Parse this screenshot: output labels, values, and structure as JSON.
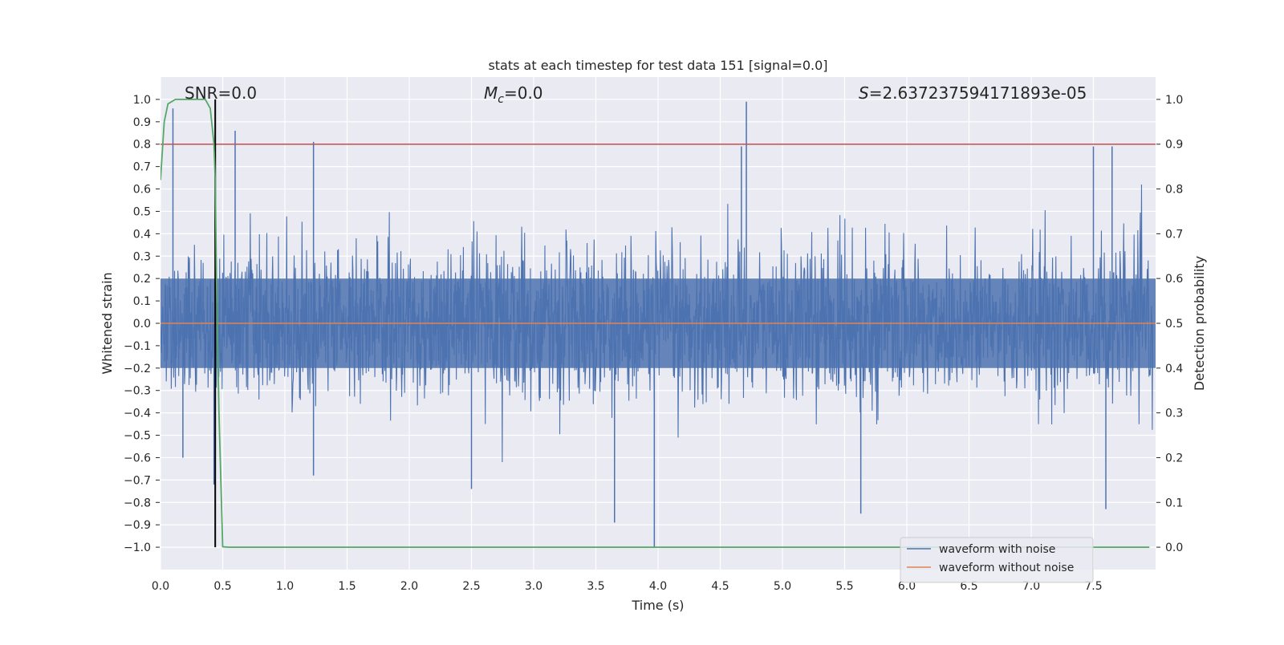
{
  "chart_data": {
    "type": "line",
    "title": "stats at each timestep for test data 151 [signal=0.0]",
    "xlabel": "Time (s)",
    "ylabel": "Whitened strain",
    "y2label": "Detection probability",
    "xlim": [
      0.0,
      8.0
    ],
    "ylim": [
      -1.1,
      1.1
    ],
    "y2lim": [
      -0.05,
      1.05
    ],
    "grid": true,
    "legend_position": "lower-right",
    "x_ticks": [
      "0.0",
      "0.5",
      "1.0",
      "1.5",
      "2.0",
      "2.5",
      "3.0",
      "3.5",
      "4.0",
      "4.5",
      "5.0",
      "5.5",
      "6.0",
      "6.5",
      "7.0",
      "7.5"
    ],
    "y_ticks": [
      "1.0",
      "0.9",
      "0.8",
      "0.7",
      "0.6",
      "0.5",
      "0.4",
      "0.3",
      "0.2",
      "0.1",
      "0.0",
      "−0.1",
      "−0.2",
      "−0.3",
      "−0.4",
      "−0.5",
      "−0.6",
      "−0.7",
      "−0.8",
      "−0.9",
      "−1.0"
    ],
    "y2_ticks": [
      "1.0",
      "0.9",
      "0.8",
      "0.7",
      "0.6",
      "0.5",
      "0.4",
      "0.3",
      "0.2",
      "0.1",
      "0.0"
    ],
    "annotations": {
      "snr": "SNR=0.0",
      "mc_symbol": "M",
      "mc_sub": "c",
      "mc_value": "=0.0",
      "s_symbol": "S",
      "s_value": "=2.637237594171893e-05"
    },
    "series": [
      {
        "name": "waveform with noise",
        "color": "#4c72b0",
        "axis": "left",
        "description_values": "dense noise, amplitude mostly within ±0.45, peaks near 0.99 at t≈4.71 and -1.0 at t≈3.97",
        "peaks": [
          {
            "x": 0.1,
            "y": 0.96
          },
          {
            "x": 0.6,
            "y": 0.86
          },
          {
            "x": 1.23,
            "y": 0.81
          },
          {
            "x": 4.71,
            "y": 0.99
          },
          {
            "x": 4.67,
            "y": 0.79
          },
          {
            "x": 7.5,
            "y": 0.79
          },
          {
            "x": 7.65,
            "y": 0.79
          },
          {
            "x": 3.97,
            "y": -1.0
          },
          {
            "x": 3.65,
            "y": -0.89
          },
          {
            "x": 5.63,
            "y": -0.85
          },
          {
            "x": 7.6,
            "y": -0.83
          },
          {
            "x": 2.5,
            "y": -0.74
          },
          {
            "x": 0.43,
            "y": -0.72
          },
          {
            "x": 1.23,
            "y": -0.68
          },
          {
            "x": 0.18,
            "y": -0.6
          }
        ]
      },
      {
        "name": "waveform without noise",
        "color": "#dd8452",
        "axis": "left",
        "x": [
          0.0,
          8.0
        ],
        "y": [
          0.0,
          0.0
        ]
      },
      {
        "name": "",
        "color": "#55a868",
        "axis": "right",
        "x": [
          0.0,
          0.03,
          0.06,
          0.12,
          0.2,
          0.3,
          0.36,
          0.4,
          0.43,
          0.44,
          0.45,
          0.47,
          0.5,
          0.55,
          0.6,
          1.0,
          7.95
        ],
        "y": [
          0.82,
          0.95,
          0.99,
          1.0,
          1.0,
          1.0,
          1.0,
          0.98,
          0.9,
          0.82,
          0.6,
          0.3,
          0.001,
          0.0,
          0.0,
          0.0,
          0.0
        ]
      }
    ],
    "threshold_line": {
      "axis": "right",
      "y": 0.9,
      "color": "#c44e52"
    },
    "vertical_line": {
      "x": 0.44,
      "y_from": -1.0,
      "y_to": 1.0,
      "color": "#000000"
    }
  }
}
